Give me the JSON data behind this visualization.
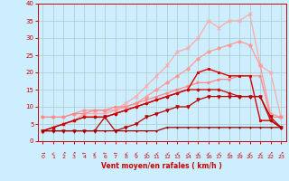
{
  "title": "",
  "xlabel": "Vent moyen/en rafales ( km/h )",
  "background_color": "#cceeff",
  "grid_color": "#aacccc",
  "text_color": "#cc0000",
  "x_ticks": [
    0,
    1,
    2,
    3,
    4,
    5,
    6,
    7,
    8,
    9,
    10,
    11,
    12,
    13,
    14,
    15,
    16,
    17,
    18,
    19,
    20,
    21,
    22,
    23
  ],
  "y_ticks": [
    0,
    5,
    10,
    15,
    20,
    25,
    30,
    35,
    40
  ],
  "xlim": [
    -0.5,
    23.5
  ],
  "ylim": [
    0,
    40
  ],
  "series": [
    {
      "comment": "light pink top line - x marker",
      "x": [
        0,
        1,
        2,
        3,
        4,
        5,
        6,
        7,
        8,
        9,
        10,
        11,
        12,
        13,
        14,
        15,
        16,
        17,
        18,
        19,
        20,
        21,
        22,
        23
      ],
      "y": [
        3,
        4,
        5,
        6,
        8,
        8,
        8,
        9,
        11,
        13,
        16,
        19,
        22,
        26,
        27,
        30,
        35,
        33,
        35,
        35,
        37,
        22,
        20,
        7
      ],
      "color": "#ffaaaa",
      "linewidth": 0.9,
      "marker": "x",
      "markersize": 2.5,
      "alpha": 1.0
    },
    {
      "comment": "light pink - diamond/dot marker - goes up to 28-29",
      "x": [
        0,
        1,
        2,
        3,
        4,
        5,
        6,
        7,
        8,
        9,
        10,
        11,
        12,
        13,
        14,
        15,
        16,
        17,
        18,
        19,
        20,
        21,
        22,
        23
      ],
      "y": [
        7,
        7,
        7,
        8,
        9,
        9,
        9,
        9,
        10,
        11,
        13,
        15,
        17,
        19,
        21,
        24,
        26,
        27,
        28,
        29,
        28,
        22,
        8,
        7
      ],
      "color": "#ff9999",
      "linewidth": 0.9,
      "marker": "D",
      "markersize": 2.0,
      "alpha": 1.0
    },
    {
      "comment": "medium pink straight line from 7 to 19",
      "x": [
        0,
        1,
        2,
        3,
        4,
        5,
        6,
        7,
        8,
        9,
        10,
        11,
        12,
        13,
        14,
        15,
        16,
        17,
        18,
        19,
        20,
        21,
        22,
        23
      ],
      "y": [
        7,
        7,
        7,
        8,
        8,
        9,
        9,
        10,
        10,
        11,
        12,
        13,
        14,
        15,
        16,
        17,
        17,
        18,
        18,
        19,
        19,
        19,
        7,
        7
      ],
      "color": "#ff8888",
      "linewidth": 0.9,
      "marker": ">",
      "markersize": 2.0,
      "alpha": 1.0
    },
    {
      "comment": "dark red - square markers - peaks at 20-21",
      "x": [
        0,
        1,
        2,
        3,
        4,
        5,
        6,
        7,
        8,
        9,
        10,
        11,
        12,
        13,
        14,
        15,
        16,
        17,
        18,
        19,
        20,
        21,
        22,
        23
      ],
      "y": [
        3,
        4,
        5,
        6,
        7,
        7,
        7,
        8,
        9,
        10,
        11,
        12,
        13,
        14,
        15,
        20,
        21,
        20,
        19,
        19,
        19,
        6,
        6,
        4
      ],
      "color": "#dd0000",
      "linewidth": 1.0,
      "marker": "s",
      "markersize": 2.0,
      "alpha": 1.0
    },
    {
      "comment": "dark red plus markers",
      "x": [
        0,
        1,
        2,
        3,
        4,
        5,
        6,
        7,
        8,
        9,
        10,
        11,
        12,
        13,
        14,
        15,
        16,
        17,
        18,
        19,
        20,
        21,
        22,
        23
      ],
      "y": [
        3,
        4,
        5,
        6,
        7,
        7,
        7,
        8,
        9,
        10,
        11,
        12,
        13,
        14,
        15,
        15,
        15,
        15,
        14,
        13,
        13,
        13,
        6,
        4
      ],
      "color": "#cc0000",
      "linewidth": 0.9,
      "marker": "P",
      "markersize": 2.0,
      "alpha": 1.0
    },
    {
      "comment": "dark red triangle - wiggly low line",
      "x": [
        0,
        1,
        2,
        3,
        4,
        5,
        6,
        7,
        8,
        9,
        10,
        11,
        12,
        13,
        14,
        15,
        16,
        17,
        18,
        19,
        20,
        21,
        22,
        23
      ],
      "y": [
        3,
        3,
        3,
        3,
        3,
        3,
        7,
        3,
        4,
        5,
        7,
        8,
        9,
        10,
        10,
        12,
        13,
        13,
        13,
        13,
        13,
        13,
        7,
        4
      ],
      "color": "#bb0000",
      "linewidth": 0.9,
      "marker": "v",
      "markersize": 2.5,
      "alpha": 1.0
    },
    {
      "comment": "darkest red - flat bottom line stays near 3-5",
      "x": [
        0,
        1,
        2,
        3,
        4,
        5,
        6,
        7,
        8,
        9,
        10,
        11,
        12,
        13,
        14,
        15,
        16,
        17,
        18,
        19,
        20,
        21,
        22,
        23
      ],
      "y": [
        3,
        3,
        3,
        3,
        3,
        3,
        3,
        3,
        3,
        3,
        3,
        3,
        4,
        4,
        4,
        4,
        4,
        4,
        4,
        4,
        4,
        4,
        4,
        4
      ],
      "color": "#990000",
      "linewidth": 0.9,
      "marker": ".",
      "markersize": 1.5,
      "alpha": 1.0
    }
  ],
  "wind_arrows": [
    "→",
    "↙",
    "↗",
    "↗",
    "←",
    "↙",
    "←",
    "←",
    "↙",
    "↙",
    "↙",
    "↙",
    "↙",
    "↙",
    "↙",
    "↙",
    "↙",
    "↙",
    "↙",
    "↙",
    "↙",
    "↙",
    "↗",
    "↗"
  ]
}
